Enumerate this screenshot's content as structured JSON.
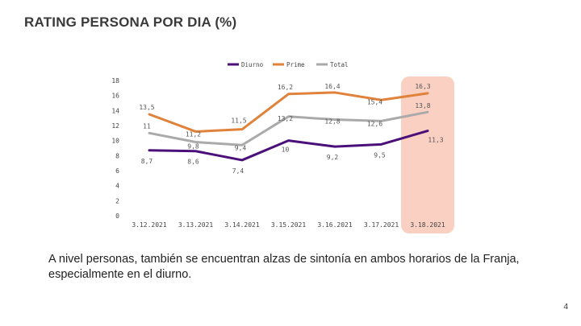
{
  "page": {
    "title": "RATING PERSONA POR DIA (%)",
    "caption": "A nivel personas, también se encuentran alzas de sintonía en ambos horarios de la Franja, especialmente en el diurno.",
    "page_number": "4"
  },
  "chart_data": {
    "type": "line",
    "title": "RATING PERSONA POR DIA (%)",
    "categories": [
      "3.12.2021",
      "3.13.2021",
      "3.14.2021",
      "3.15.2021",
      "3.16.2021",
      "3.17.2021",
      "3.18.2021"
    ],
    "ylim": [
      0,
      18
    ],
    "yticks": [
      "0",
      "2",
      "4",
      "6",
      "8",
      "10",
      "12",
      "14",
      "16",
      "18"
    ],
    "legend_position": "top-center",
    "highlight_category_index": 6,
    "highlight_color": "#f9d0c2",
    "series": [
      {
        "name": "Diurno",
        "color": "#4b0f7a",
        "values": [
          8.7,
          8.6,
          7.4,
          10,
          9.2,
          9.5,
          11.3
        ],
        "labels": [
          "8,7",
          "8,6",
          "7,4",
          "10",
          "9,2",
          "9,5",
          "11,3"
        ]
      },
      {
        "name": "Prime",
        "color": "#e0823a",
        "values": [
          13.5,
          11.2,
          11.5,
          16.2,
          16.4,
          15.4,
          16.3
        ],
        "labels": [
          "13,5",
          "11,2",
          "11,5",
          "16,2",
          "16,4",
          "15,4",
          "16,3"
        ]
      },
      {
        "name": "Total",
        "color": "#aaaaaa",
        "values": [
          11,
          9.8,
          9.4,
          13.2,
          12.8,
          12.6,
          13.8
        ],
        "labels": [
          "11",
          "9,8",
          "9,4",
          "13,2",
          "12,8",
          "12,6",
          "13,8"
        ]
      }
    ]
  }
}
